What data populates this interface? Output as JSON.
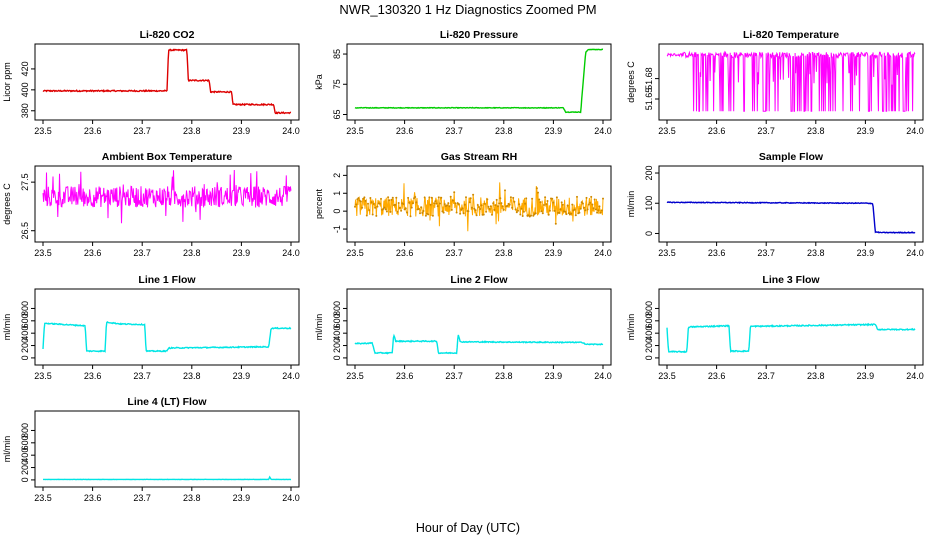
{
  "page": {
    "title": "NWR_130320  1 Hz Diagnostics Zoomed PM",
    "xlabel": "Hour of Day (UTC)"
  },
  "chart_data": [
    {
      "type": "line",
      "title": "Li-820 CO2",
      "ylabel": "Licor ppm",
      "color": "#dd0000",
      "xlim": [
        23.5,
        24.0
      ],
      "ylim": [
        375,
        440
      ],
      "yticks": [
        380,
        400,
        420
      ],
      "xticks": [
        "23.5",
        "23.6",
        "23.7",
        "23.8",
        "23.9",
        "24.0"
      ],
      "steps": [
        [
          23.5,
          399
        ],
        [
          23.75,
          399
        ],
        [
          23.753,
          438
        ],
        [
          23.79,
          438
        ],
        [
          23.793,
          409
        ],
        [
          23.835,
          409
        ],
        [
          23.838,
          398
        ],
        [
          23.88,
          398
        ],
        [
          23.883,
          386
        ],
        [
          23.965,
          386
        ],
        [
          23.968,
          378
        ],
        [
          24.0,
          378
        ]
      ],
      "noise": 0.6
    },
    {
      "type": "line",
      "title": "Li-820 Pressure",
      "ylabel": "kPa",
      "color": "#00cc00",
      "xlim": [
        23.5,
        24.0
      ],
      "ylim": [
        64.5,
        87
      ],
      "yticks": [
        65,
        75,
        85
      ],
      "xticks": [
        "23.5",
        "23.6",
        "23.7",
        "23.8",
        "23.9",
        "24.0"
      ],
      "steps": [
        [
          23.5,
          67.2
        ],
        [
          23.92,
          67.2
        ],
        [
          23.925,
          65.8
        ],
        [
          23.955,
          65.8
        ],
        [
          23.965,
          85.5
        ],
        [
          23.97,
          86.5
        ],
        [
          24.0,
          86.5
        ]
      ],
      "noise": 0.1
    },
    {
      "type": "line",
      "title": "Li-820 Temperature",
      "ylabel": "degrees C",
      "color": "#ff00ff",
      "xlim": [
        23.5,
        24.0
      ],
      "ylim": [
        51.625,
        51.725
      ],
      "yticks": [
        51.65,
        51.68
      ],
      "xticks": [
        "23.5",
        "23.6",
        "23.7",
        "23.8",
        "23.9",
        "24.0"
      ],
      "mode": "binary",
      "high": 51.715,
      "mid": 51.68,
      "low": 51.632
    },
    {
      "type": "line",
      "title": "Ambient Box Temperature",
      "ylabel": "degrees C",
      "color": "#ff00ff",
      "xlim": [
        23.5,
        24.0
      ],
      "ylim": [
        26.35,
        27.75
      ],
      "yticks": [
        26.5,
        27.5
      ],
      "xticks": [
        "23.5",
        "23.6",
        "23.7",
        "23.8",
        "23.9",
        "24.0"
      ],
      "mode": "noise",
      "center": 27.2,
      "amp": 0.22
    },
    {
      "type": "line",
      "title": "Gas Stream RH",
      "ylabel": "percent",
      "color": "#ffaa00",
      "xlim": [
        23.5,
        24.0
      ],
      "ylim": [
        -1.5,
        2.3
      ],
      "yticks": [
        -1.0,
        0.0,
        1.0,
        2.0
      ],
      "xticks": [
        "23.5",
        "23.6",
        "23.7",
        "23.8",
        "23.9",
        "24.0"
      ],
      "mode": "noise",
      "center": 0.25,
      "amp": 0.55,
      "points": true
    },
    {
      "type": "line",
      "title": "Sample Flow",
      "ylabel": "ml/min",
      "color": "#0000cc",
      "xlim": [
        23.5,
        24.0
      ],
      "ylim": [
        -15,
        210
      ],
      "yticks": [
        0,
        100,
        200
      ],
      "xticks": [
        "23.5",
        "23.6",
        "23.7",
        "23.8",
        "23.9",
        "24.0"
      ],
      "steps": [
        [
          23.5,
          103
        ],
        [
          23.91,
          100
        ],
        [
          23.915,
          98
        ],
        [
          23.92,
          5
        ],
        [
          23.93,
          3
        ],
        [
          24.0,
          3
        ]
      ],
      "noise": 1.2
    },
    {
      "type": "line",
      "title": "Line 1 Flow",
      "ylabel": "ml/min",
      "color": "#00e5e5",
      "xlim": [
        23.5,
        24.0
      ],
      "ylim": [
        -50,
        1050
      ],
      "yticks": [
        0,
        200,
        400,
        600,
        800
      ],
      "xticks": [
        "23.5",
        "23.6",
        "23.7",
        "23.8",
        "23.9",
        "24.0"
      ],
      "steps": [
        [
          23.5,
          150
        ],
        [
          23.503,
          560
        ],
        [
          23.585,
          520
        ],
        [
          23.588,
          110
        ],
        [
          23.625,
          110
        ],
        [
          23.628,
          580
        ],
        [
          23.655,
          550
        ],
        [
          23.705,
          540
        ],
        [
          23.708,
          110
        ],
        [
          23.75,
          110
        ],
        [
          23.753,
          160
        ],
        [
          23.955,
          180
        ],
        [
          23.96,
          480
        ],
        [
          24.0,
          480
        ]
      ],
      "noise": 8
    },
    {
      "type": "line",
      "title": "Line 2 Flow",
      "ylabel": "ml/min",
      "color": "#00e5e5",
      "xlim": [
        23.5,
        24.0
      ],
      "ylim": [
        -50,
        1050
      ],
      "yticks": [
        0,
        200,
        400,
        600,
        800
      ],
      "xticks": [
        "23.5",
        "23.6",
        "23.7",
        "23.8",
        "23.9",
        "24.0"
      ],
      "steps": [
        [
          23.5,
          230
        ],
        [
          23.535,
          240
        ],
        [
          23.54,
          80
        ],
        [
          23.575,
          80
        ],
        [
          23.578,
          380
        ],
        [
          23.582,
          270
        ],
        [
          23.665,
          270
        ],
        [
          23.668,
          80
        ],
        [
          23.705,
          80
        ],
        [
          23.708,
          390
        ],
        [
          23.712,
          260
        ],
        [
          23.96,
          250
        ],
        [
          23.965,
          220
        ],
        [
          24.0,
          220
        ]
      ],
      "noise": 8
    },
    {
      "type": "line",
      "title": "Line 3 Flow",
      "ylabel": "ml/min",
      "color": "#00e5e5",
      "xlim": [
        23.5,
        24.0
      ],
      "ylim": [
        -50,
        1050
      ],
      "yticks": [
        0,
        200,
        400,
        600,
        800
      ],
      "xticks": [
        "23.5",
        "23.6",
        "23.7",
        "23.8",
        "23.9",
        "24.0"
      ],
      "steps": [
        [
          23.5,
          480
        ],
        [
          23.503,
          100
        ],
        [
          23.54,
          100
        ],
        [
          23.543,
          500
        ],
        [
          23.625,
          520
        ],
        [
          23.628,
          110
        ],
        [
          23.665,
          110
        ],
        [
          23.668,
          510
        ],
        [
          23.92,
          540
        ],
        [
          23.925,
          460
        ],
        [
          24.0,
          460
        ]
      ],
      "noise": 9
    },
    {
      "type": "line",
      "title": "Line 4 (LT) Flow",
      "ylabel": "ml/min",
      "color": "#00e5e5",
      "xlim": [
        23.5,
        24.0
      ],
      "ylim": [
        -50,
        1050
      ],
      "yticks": [
        0,
        200,
        400,
        600,
        800
      ],
      "xticks": [
        "23.5",
        "23.6",
        "23.7",
        "23.8",
        "23.9",
        "24.0"
      ],
      "steps": [
        [
          23.5,
          8
        ],
        [
          23.955,
          8
        ],
        [
          23.957,
          50
        ],
        [
          23.96,
          8
        ],
        [
          24.0,
          8
        ]
      ],
      "noise": 1.5
    }
  ]
}
